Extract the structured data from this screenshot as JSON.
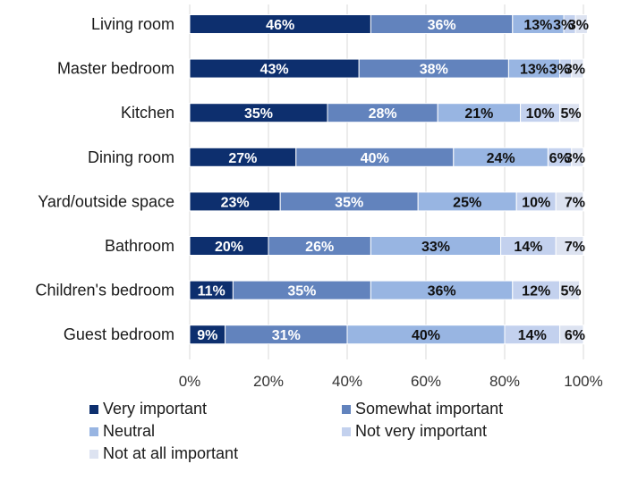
{
  "chart_data": {
    "type": "bar",
    "orientation": "horizontal",
    "stacked": true,
    "categories": [
      "Living room",
      "Master bedroom",
      "Kitchen",
      "Dining room",
      "Yard/outside space",
      "Bathroom",
      "Children's bedroom",
      "Guest bedroom"
    ],
    "series": [
      {
        "name": "Very important",
        "color": "#0d2f6e",
        "values": [
          46,
          43,
          35,
          27,
          23,
          20,
          11,
          9
        ]
      },
      {
        "name": "Somewhat important",
        "color": "#6283bd",
        "values": [
          36,
          38,
          28,
          40,
          35,
          26,
          35,
          31
        ]
      },
      {
        "name": "Neutral",
        "color": "#98b5e2",
        "values": [
          13,
          13,
          21,
          24,
          25,
          33,
          36,
          40
        ]
      },
      {
        "name": "Not very important",
        "color": "#c3d1ee",
        "values": [
          3,
          3,
          10,
          6,
          10,
          14,
          12,
          14
        ]
      },
      {
        "name": "Not at all important",
        "color": "#dde3f1",
        "values": [
          3,
          3,
          5,
          3,
          7,
          7,
          5,
          6
        ]
      }
    ],
    "data_labels": [
      [
        "46%",
        "43%",
        "35%",
        "27%",
        "23%",
        "20%",
        "11%",
        "9%"
      ],
      [
        "36%",
        "38%",
        "28%",
        "40%",
        "35%",
        "26%",
        "35%",
        "31%"
      ],
      [
        "13%",
        "13%",
        "21%",
        "24%",
        "25%",
        "33%",
        "36%",
        "40%"
      ],
      [
        "3%",
        "3%",
        "10%",
        "6%",
        "10%",
        "14%",
        "12%",
        "14%"
      ],
      [
        "3%",
        "3%",
        "5%",
        "3%",
        "7%",
        "7%",
        "5%",
        "6%"
      ]
    ],
    "xlim": [
      0,
      100
    ],
    "xticks": [
      "0%",
      "20%",
      "40%",
      "60%",
      "80%",
      "100%"
    ],
    "grid": true,
    "legend_position": "bottom",
    "title": "",
    "xlabel": "",
    "ylabel": ""
  }
}
